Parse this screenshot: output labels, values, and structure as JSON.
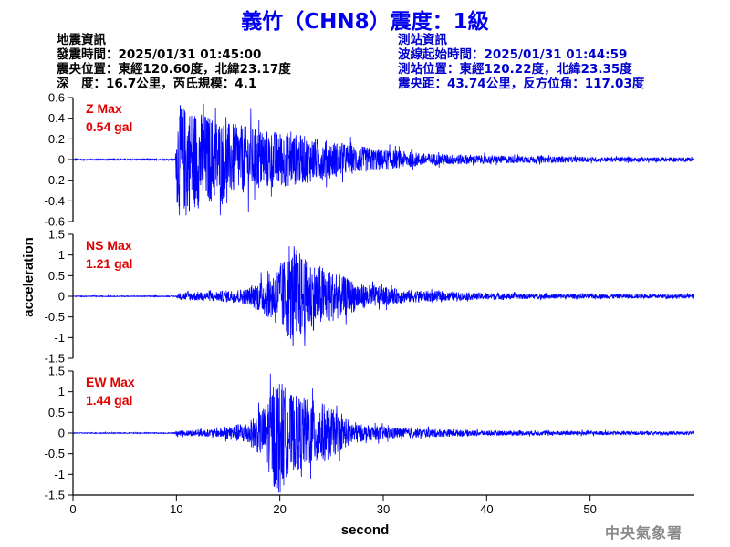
{
  "header": {
    "title": "義竹（CHN8）震度：1級"
  },
  "quake_info": {
    "heading": "地震資訊",
    "origin_time": "發震時間：2025/01/31 01:45:00",
    "epicenter": "震央位置：東經120.60度，北緯23.17度",
    "depth_magnitude": "深　度：16.7公里，芮氏規模：4.1"
  },
  "station_info": {
    "heading": "測站資訊",
    "wave_start": "波線起始時間：2025/01/31 01:44:59",
    "location": "測站位置：東經120.22度，北緯23.35度",
    "distance_azimuth": "震央距：43.74公里，反方位角：117.03度"
  },
  "agency": "中央氣象署",
  "colors": {
    "trace": "#0000ff",
    "peak_label": "#e00000",
    "title": "#0000ee"
  },
  "chart_data": {
    "type": "line",
    "xlabel": "second",
    "ylabel": "acceleration",
    "xlim": [
      0,
      60
    ],
    "x_ticks": [
      0,
      10,
      20,
      30,
      40,
      50
    ],
    "grid": false,
    "panels": [
      {
        "name": "Z",
        "peak_label": "Z Max",
        "peak_value_label": "0.54 gal",
        "peak": 0.54,
        "ylim": [
          -0.6,
          0.6
        ],
        "y_ticks": [
          -0.6,
          -0.4,
          -0.2,
          0,
          0.2,
          0.4,
          0.6
        ],
        "y_tick_labels": [
          "-0.6",
          "-0.4",
          "-0.2",
          "0",
          "0.2",
          "0.4",
          "0.6"
        ],
        "envelope": [
          [
            0,
            0.006
          ],
          [
            9.9,
            0.006
          ],
          [
            10.1,
            0.54
          ],
          [
            11.5,
            0.5
          ],
          [
            13,
            0.44
          ],
          [
            15,
            0.36
          ],
          [
            18,
            0.3
          ],
          [
            21,
            0.26
          ],
          [
            24,
            0.2
          ],
          [
            27,
            0.14
          ],
          [
            30,
            0.1
          ],
          [
            34,
            0.06
          ],
          [
            40,
            0.04
          ],
          [
            50,
            0.025
          ],
          [
            60,
            0.02
          ]
        ]
      },
      {
        "name": "NS",
        "peak_label": "NS Max",
        "peak_value_label": "1.21 gal",
        "peak": 1.21,
        "ylim": [
          -1.5,
          1.5
        ],
        "y_ticks": [
          -1.5,
          -1,
          -0.5,
          0,
          0.5,
          1,
          1.5
        ],
        "y_tick_labels": [
          "-1.5",
          "-1",
          "-0.5",
          "0",
          "0.5",
          "1",
          "1.5"
        ],
        "envelope": [
          [
            0,
            0.01
          ],
          [
            10,
            0.01
          ],
          [
            10.5,
            0.1
          ],
          [
            14,
            0.12
          ],
          [
            17,
            0.2
          ],
          [
            19,
            0.55
          ],
          [
            20,
            0.8
          ],
          [
            21.5,
            1.21
          ],
          [
            22.5,
            0.9
          ],
          [
            24,
            0.75
          ],
          [
            26,
            0.5
          ],
          [
            28,
            0.3
          ],
          [
            32,
            0.16
          ],
          [
            38,
            0.09
          ],
          [
            45,
            0.06
          ],
          [
            60,
            0.05
          ]
        ]
      },
      {
        "name": "EW",
        "peak_label": "EW Max",
        "peak_value_label": "1.44 gal",
        "peak": 1.44,
        "ylim": [
          -1.5,
          1.5
        ],
        "y_ticks": [
          -1.5,
          -1,
          -0.5,
          0,
          0.5,
          1,
          1.5
        ],
        "y_tick_labels": [
          "-1.5",
          "-1",
          "-0.5",
          "0",
          "0.5",
          "1",
          "1.5"
        ],
        "envelope": [
          [
            0,
            0.01
          ],
          [
            9.8,
            0.01
          ],
          [
            10,
            0.06
          ],
          [
            14,
            0.1
          ],
          [
            17,
            0.28
          ],
          [
            18.5,
            0.65
          ],
          [
            19.6,
            1.44
          ],
          [
            21,
            0.95
          ],
          [
            22.5,
            0.85
          ],
          [
            24.5,
            0.7
          ],
          [
            26,
            0.4
          ],
          [
            28,
            0.2
          ],
          [
            32,
            0.12
          ],
          [
            40,
            0.06
          ],
          [
            60,
            0.04
          ]
        ]
      }
    ]
  }
}
